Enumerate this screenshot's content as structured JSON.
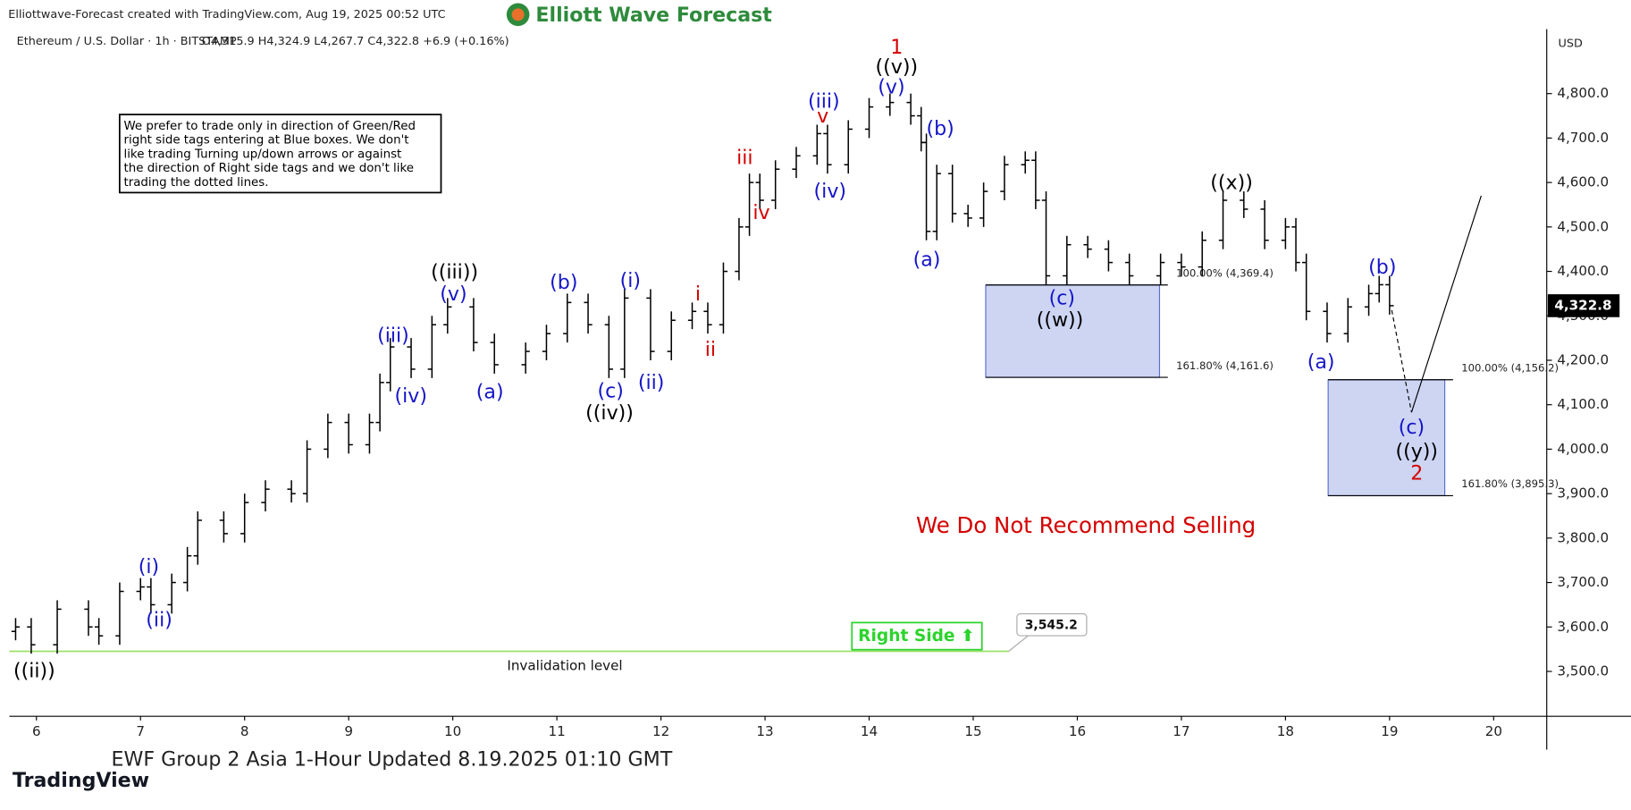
{
  "header": "Elliottwave-Forecast created with TradingView.com, Aug 19, 2025 00:52 UTC",
  "logo": "Elliott Wave Forecast",
  "footer": "EWF Group 2 Asia 1-Hour Updated 8.19.2025 01:10 GMT",
  "brand": "TradingView",
  "chart_data": {
    "type": "ohlc",
    "symbol": "Ethereum / U.S. Dollar · 1h · BITSTAMP",
    "ohlc_text": "O4,315.9 H4,324.9 L4,267.7 C4,322.8 +6.9 (+0.16%)",
    "currency": "USD",
    "x": [
      5.8,
      5.95,
      6.2,
      6.5,
      6.6,
      6.8,
      7.0,
      7.1,
      7.3,
      7.45,
      7.55,
      7.8,
      8.0,
      8.2,
      8.45,
      8.6,
      8.8,
      9.0,
      9.2,
      9.3,
      9.4,
      9.6,
      9.8,
      9.95,
      10.2,
      10.4,
      10.7,
      10.9,
      11.1,
      11.3,
      11.5,
      11.65,
      11.9,
      12.1,
      12.3,
      12.45,
      12.6,
      12.75,
      12.85,
      12.95,
      13.1,
      13.3,
      13.5,
      13.6,
      13.8,
      14.0,
      14.2,
      14.4,
      14.5,
      14.55,
      14.65,
      14.8,
      14.95,
      15.1,
      15.3,
      15.5,
      15.6,
      15.7,
      15.9,
      16.1,
      16.3,
      16.5,
      16.8,
      17.0,
      17.2,
      17.4,
      17.6,
      17.8,
      18.0,
      18.1,
      18.2,
      18.4,
      18.6,
      18.8,
      18.9,
      19.0
    ],
    "open": [
      3590,
      3600,
      3560,
      3640,
      3600,
      3580,
      3680,
      3690,
      3650,
      3700,
      3760,
      3840,
      3810,
      3880,
      3910,
      3900,
      4000,
      4060,
      4010,
      4060,
      4150,
      4230,
      4180,
      4280,
      4320,
      4240,
      4190,
      4220,
      4260,
      4330,
      4280,
      4180,
      4340,
      4220,
      4290,
      4310,
      4280,
      4400,
      4500,
      4600,
      4560,
      4630,
      4660,
      4710,
      4640,
      4720,
      4770,
      4780,
      4750,
      4690,
      4490,
      4620,
      4530,
      4520,
      4580,
      4640,
      4650,
      4560,
      4390,
      4460,
      4450,
      4420,
      4390,
      4420,
      4410,
      4470,
      4560,
      4540,
      4470,
      4500,
      4420,
      4310,
      4260,
      4320,
      4350,
      4370
    ],
    "high": [
      3620,
      3620,
      3660,
      3660,
      3620,
      3700,
      3710,
      3710,
      3720,
      3780,
      3860,
      3860,
      3900,
      3930,
      3930,
      4020,
      4080,
      4080,
      4080,
      4170,
      4250,
      4250,
      4300,
      4340,
      4340,
      4260,
      4240,
      4280,
      4350,
      4350,
      4300,
      4360,
      4360,
      4310,
      4330,
      4330,
      4420,
      4520,
      4620,
      4620,
      4650,
      4680,
      4730,
      4730,
      4740,
      4790,
      4800,
      4800,
      4770,
      4710,
      4640,
      4640,
      4550,
      4600,
      4660,
      4670,
      4670,
      4580,
      4480,
      4480,
      4470,
      4440,
      4440,
      4440,
      4490,
      4580,
      4580,
      4560,
      4520,
      4520,
      4440,
      4330,
      4340,
      4370,
      4390,
      4390
    ],
    "low": [
      3570,
      3540,
      3540,
      3580,
      3560,
      3560,
      3660,
      3630,
      3630,
      3680,
      3740,
      3790,
      3790,
      3860,
      3880,
      3880,
      3980,
      3990,
      3990,
      4040,
      4130,
      4160,
      4160,
      4260,
      4220,
      4170,
      4170,
      4200,
      4240,
      4260,
      4160,
      4160,
      4200,
      4200,
      4270,
      4260,
      4260,
      4380,
      4480,
      4540,
      4540,
      4610,
      4640,
      4620,
      4620,
      4700,
      4750,
      4730,
      4670,
      4470,
      4470,
      4510,
      4500,
      4500,
      4560,
      4620,
      4540,
      4370,
      4370,
      4430,
      4400,
      4370,
      4370,
      4390,
      4390,
      4450,
      4520,
      4450,
      4450,
      4400,
      4290,
      4240,
      4240,
      4300,
      4330,
      4302.8
    ],
    "close": [
      3600,
      3560,
      3640,
      3600,
      3580,
      3680,
      3690,
      3650,
      3700,
      3760,
      3840,
      3810,
      3880,
      3910,
      3900,
      4000,
      4060,
      4010,
      4060,
      4150,
      4230,
      4180,
      4280,
      4320,
      4240,
      4190,
      4220,
      4260,
      4330,
      4280,
      4180,
      4340,
      4220,
      4290,
      4310,
      4280,
      4400,
      4500,
      4600,
      4560,
      4630,
      4660,
      4710,
      4640,
      4720,
      4770,
      4780,
      4750,
      4690,
      4490,
      4620,
      4530,
      4520,
      4580,
      4640,
      4650,
      4560,
      4390,
      4460,
      4450,
      4420,
      4390,
      4420,
      4410,
      4470,
      4560,
      4540,
      4470,
      4500,
      4420,
      4310,
      4260,
      4320,
      4350,
      4370,
      4322.8
    ],
    "color": "#000000",
    "xlim": [
      5.74,
      20.51
    ],
    "xticks": [
      6,
      7,
      8,
      9,
      10,
      11,
      12,
      13,
      14,
      15,
      16,
      17,
      18,
      19,
      20
    ],
    "ylim": [
      3399,
      4945
    ],
    "yticks": [
      {
        "value": 3500,
        "label": "3,500.0"
      },
      {
        "value": 3600,
        "label": "3,600.0"
      },
      {
        "value": 3700,
        "label": "3,700.0"
      },
      {
        "value": 3800,
        "label": "3,800.0"
      },
      {
        "value": 3900,
        "label": "3,900.0"
      },
      {
        "value": 4000,
        "label": "4,000.0"
      },
      {
        "value": 4100,
        "label": "4,100.0"
      },
      {
        "value": 4200,
        "label": "4,200.0"
      },
      {
        "value": 4300,
        "label": "4,300.0"
      },
      {
        "value": 4400,
        "label": "4,400.0"
      },
      {
        "value": 4500,
        "label": "4,500.0"
      },
      {
        "value": 4600,
        "label": "4,600.0"
      },
      {
        "value": 4700,
        "label": "4,700.0"
      },
      {
        "value": 4800,
        "label": "4,800.0"
      }
    ],
    "last_price": {
      "value": 4322.8,
      "label": "4,322.8"
    },
    "zones": [
      {
        "start": 15.12,
        "end": 16.79,
        "top": 4369.4,
        "bottom": 4161.6,
        "top_label": "100.00% (4,369.4)",
        "bottom_label": "161.80% (4,161.6)",
        "color": "#cdd5f3"
      },
      {
        "start": 18.41,
        "end": 19.53,
        "top": 4156.2,
        "bottom": 3895.3,
        "top_label": "100.00% (4,156.2)",
        "bottom_label": "161.80% (3,895.3)",
        "color": "#cdd5f3"
      }
    ],
    "invalidation": {
      "value": 3545.2,
      "label": "3,545.2",
      "end": 15.34,
      "text": "Invalidation level",
      "color": "#9be06a"
    },
    "right_side": "Right Side ⬆",
    "warning": "We Do Not Recommend Selling",
    "note": [
      "We prefer to trade only in direction of Green/Red",
      "right side tags entering at Blue boxes. We don't",
      "like trading Turning up/down arrows or against",
      "the direction of Right side tags and we don't like",
      "trading the dotted lines."
    ],
    "wave_labels": [
      {
        "text": "((ii))",
        "color": "#000000"
      },
      {
        "text": "(i)",
        "color": "#1515c8"
      },
      {
        "text": "(ii)",
        "color": "#1515c8"
      },
      {
        "text": "((iii))",
        "color": "#000000"
      },
      {
        "text": "(v)",
        "color": "#1515c8"
      },
      {
        "text": "(iii)",
        "color": "#1515c8"
      },
      {
        "text": "(iv)",
        "color": "#1515c8"
      },
      {
        "text": "(a)",
        "color": "#1515c8"
      },
      {
        "text": "(b)",
        "color": "#1515c8"
      },
      {
        "text": "(c)",
        "color": "#1515c8"
      },
      {
        "text": "((iv))",
        "color": "#000000"
      },
      {
        "text": "(i)",
        "color": "#1515c8"
      },
      {
        "text": "(ii)",
        "color": "#1515c8"
      },
      {
        "text": "i",
        "color": "#d40000"
      },
      {
        "text": "ii",
        "color": "#d40000"
      },
      {
        "text": "iii",
        "color": "#d40000"
      },
      {
        "text": "iv",
        "color": "#d40000"
      },
      {
        "text": "v",
        "color": "#d40000"
      },
      {
        "text": "(iii)",
        "color": "#1515c8"
      },
      {
        "text": "(iv)",
        "color": "#1515c8"
      },
      {
        "text": "1",
        "color": "#d40000"
      },
      {
        "text": "((v))",
        "color": "#000000"
      },
      {
        "text": "(v)",
        "color": "#1515c8"
      },
      {
        "text": "(b)",
        "color": "#1515c8"
      },
      {
        "text": "(a)",
        "color": "#1515c8"
      },
      {
        "text": "(c)",
        "color": "#1515c8"
      },
      {
        "text": "((w))",
        "color": "#000000"
      },
      {
        "text": "((x))",
        "color": "#000000"
      },
      {
        "text": "(b)",
        "color": "#1515c8"
      },
      {
        "text": "(a)",
        "color": "#1515c8"
      },
      {
        "text": "(c)",
        "color": "#1515c8"
      },
      {
        "text": "((y))",
        "color": "#000000"
      },
      {
        "text": "2",
        "color": "#d40000"
      }
    ]
  }
}
